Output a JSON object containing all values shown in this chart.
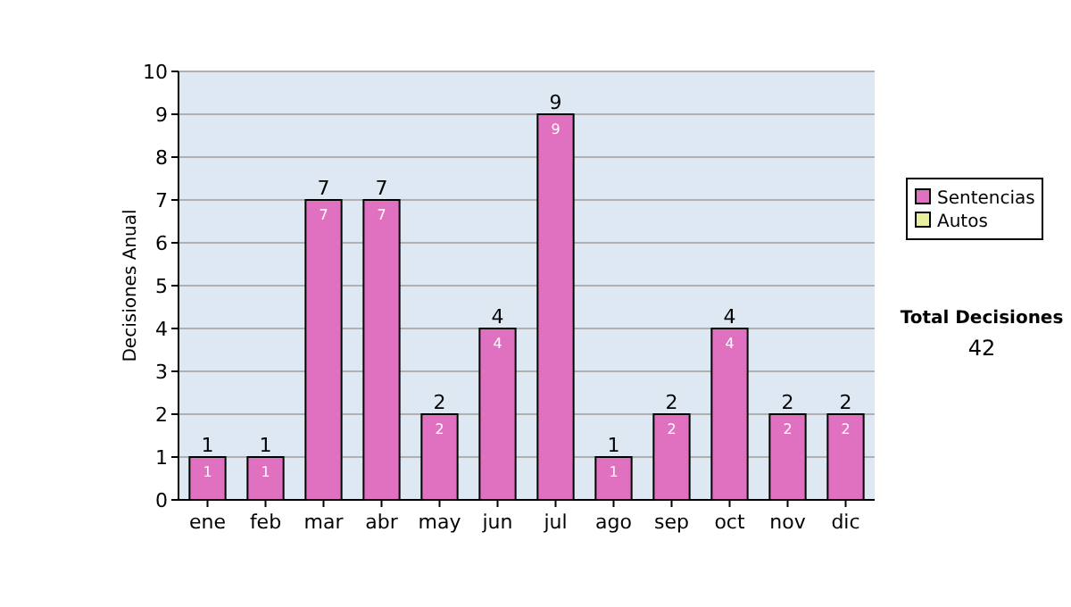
{
  "chart_data": {
    "type": "bar",
    "stacked": true,
    "ylabel": "Decisiones Anual",
    "categories": [
      "ene",
      "feb",
      "mar",
      "abr",
      "may",
      "jun",
      "jul",
      "ago",
      "sep",
      "oct",
      "nov",
      "dic"
    ],
    "series": [
      {
        "name": "Sentencias",
        "color": "#e070c0",
        "values": [
          1,
          1,
          7,
          7,
          2,
          4,
          9,
          1,
          2,
          4,
          2,
          2
        ],
        "value_labels": [
          "1",
          "1",
          "7",
          "7",
          "2",
          "4",
          "9",
          "1",
          "2",
          "4",
          "2",
          "2"
        ]
      },
      {
        "name": "Autos",
        "color": "#e8f0a0",
        "values": [
          0,
          0,
          0,
          0,
          0,
          0,
          0,
          0,
          0,
          0,
          0,
          0
        ]
      }
    ],
    "totals": [
      "1",
      "1",
      "7",
      "7",
      "2",
      "4",
      "9",
      "1",
      "2",
      "4",
      "2",
      "2"
    ],
    "ylim": [
      0,
      10
    ],
    "yticks": [
      0,
      1,
      2,
      3,
      4,
      5,
      6,
      7,
      8,
      9,
      10
    ],
    "grid": "y",
    "legend": "right",
    "annotations": [
      "Total Decisiones",
      "42"
    ]
  }
}
